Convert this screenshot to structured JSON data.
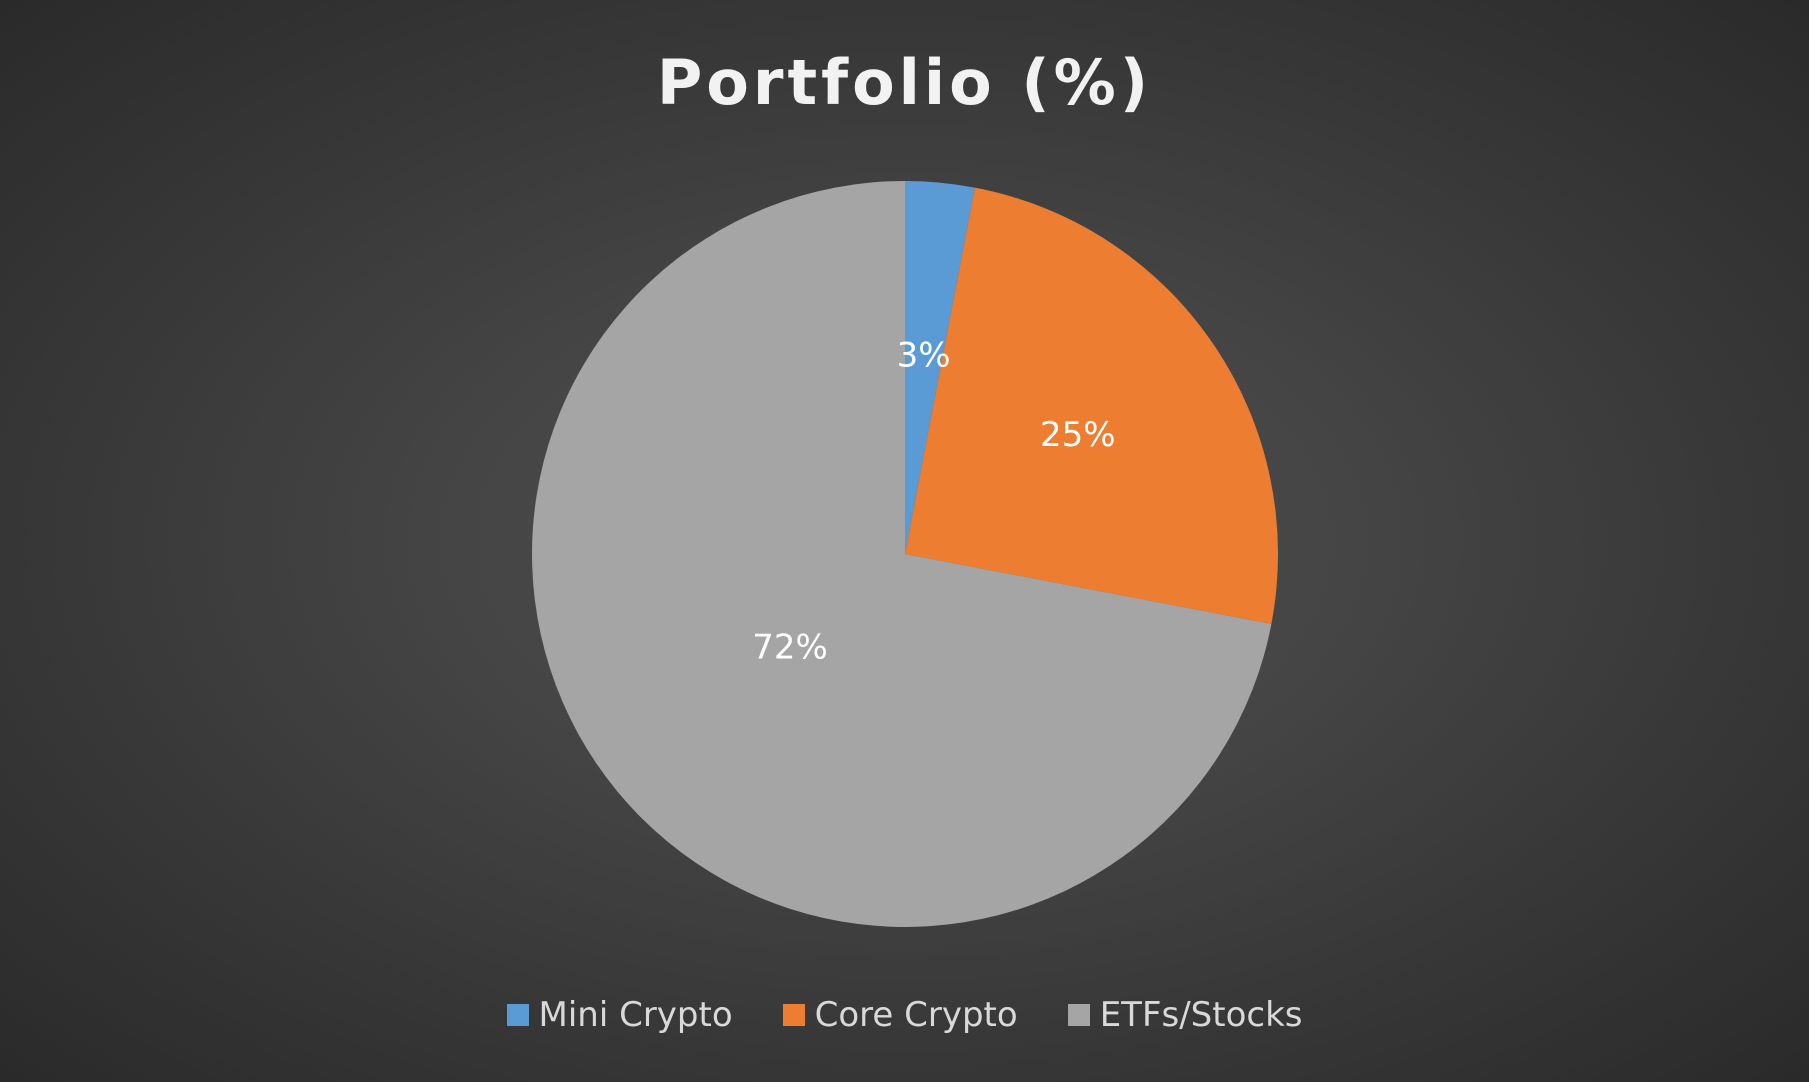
{
  "chart_data": {
    "type": "pie",
    "title": "Portfolio (%)",
    "categories": [
      "Mini Crypto",
      "Core Crypto",
      "ETFs/Stocks"
    ],
    "values": [
      3,
      25,
      72
    ],
    "data_labels": [
      "3%",
      "25%",
      "72%"
    ],
    "colors": [
      "#5b9bd5",
      "#ed7d31",
      "#a5a5a5"
    ],
    "legend_position": "bottom",
    "start_angle": "12 o'clock",
    "direction": "clockwise"
  }
}
